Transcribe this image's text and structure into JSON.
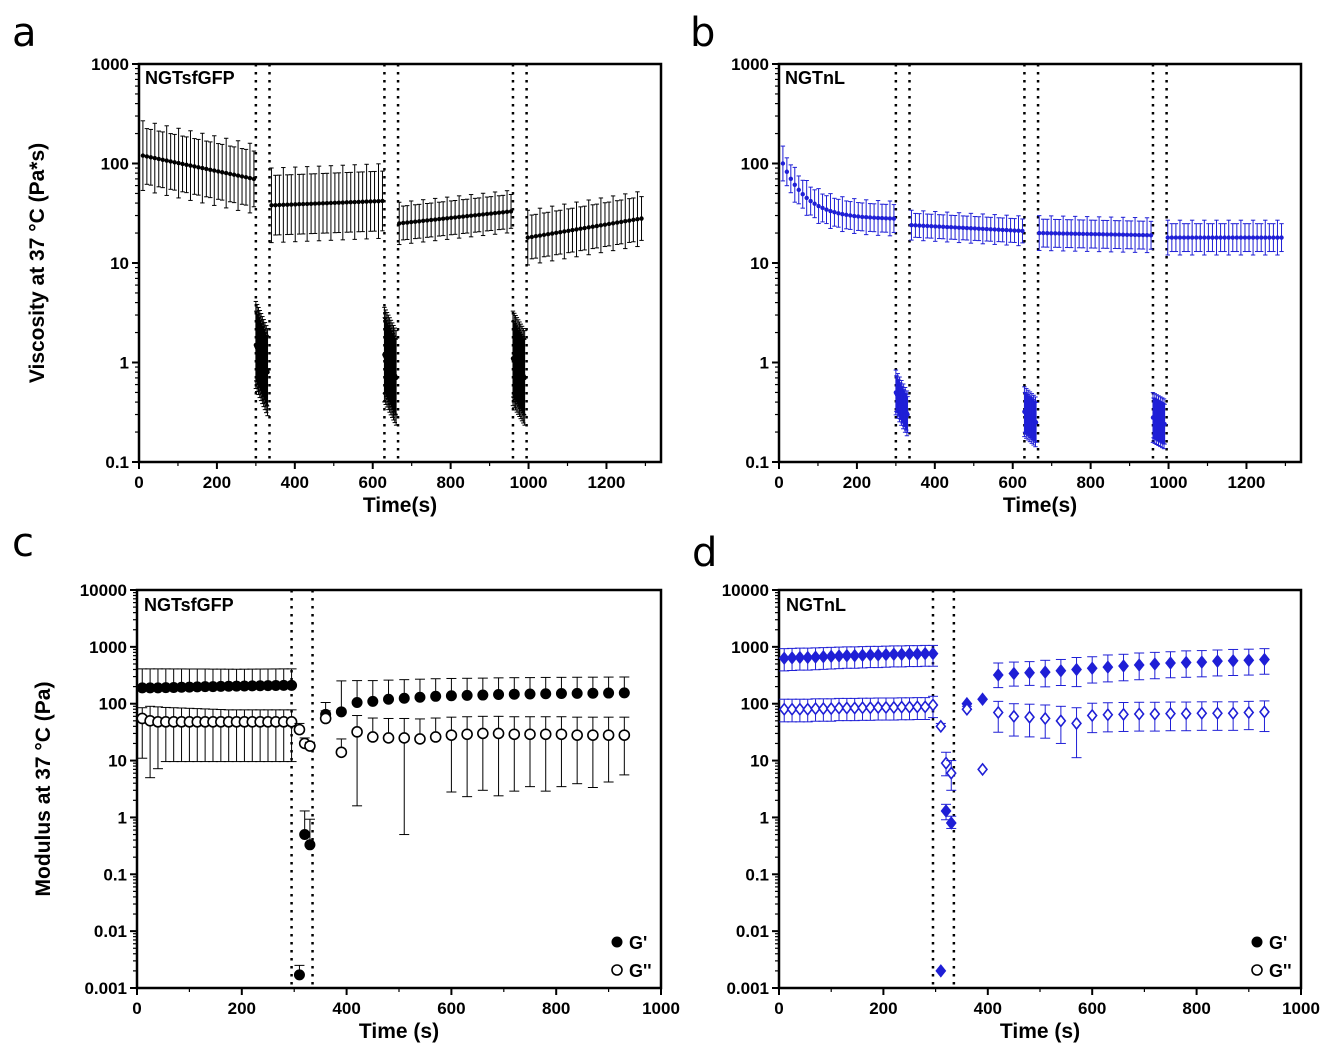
{
  "panel_letters": [
    "a",
    "b",
    "c",
    "d"
  ],
  "colors": {
    "black": "#000000",
    "blue": "#1f1fd6"
  },
  "chart_data": [
    {
      "id": "a",
      "type": "scatter",
      "scale_y": "log",
      "title": "NGTsfGFP",
      "xlabel": "Time(s)",
      "ylabel": "Viscosity at 37 °C (Pa*s)",
      "xlim": [
        0,
        1340
      ],
      "ylim": [
        0.1,
        1000
      ],
      "xticks": [
        0,
        200,
        400,
        600,
        800,
        1000,
        1200
      ],
      "yticks": [
        0.1,
        1,
        10,
        100,
        1000
      ],
      "ytick_labels": [
        "0.1",
        "1",
        "10",
        "100",
        "1000"
      ],
      "vlines": [
        300,
        335,
        630,
        665,
        960,
        995
      ],
      "color": "#000000",
      "marker": "dot",
      "segments": [
        {
          "x_start": 10,
          "x_end": 295,
          "n": 29,
          "y_start": 120,
          "y_end": 70,
          "err": 0.28
        },
        {
          "x_start": 300,
          "x_end": 330,
          "n": 28,
          "y_start": 1.5,
          "y_end": 0.8,
          "err": 0.35
        },
        {
          "x_start": 340,
          "x_end": 625,
          "n": 29,
          "y_start": 38,
          "y_end": 42,
          "err": 0.3
        },
        {
          "x_start": 630,
          "x_end": 660,
          "n": 28,
          "y_start": 1.2,
          "y_end": 0.7,
          "err": 0.38
        },
        {
          "x_start": 668,
          "x_end": 955,
          "n": 29,
          "y_start": 25,
          "y_end": 33,
          "err": 0.17
        },
        {
          "x_start": 960,
          "x_end": 990,
          "n": 28,
          "y_start": 1.1,
          "y_end": 0.7,
          "err": 0.38
        },
        {
          "x_start": 998,
          "x_end": 1290,
          "n": 29,
          "y_start": 18,
          "y_end": 28,
          "err": 0.22
        }
      ]
    },
    {
      "id": "b",
      "type": "scatter",
      "scale_y": "log",
      "title": "NGTnL",
      "xlabel": "Time(s)",
      "ylabel": "",
      "xlim": [
        0,
        1340
      ],
      "ylim": [
        0.1,
        1000
      ],
      "xticks": [
        0,
        200,
        400,
        600,
        800,
        1000,
        1200
      ],
      "yticks": [
        0.1,
        1,
        10,
        100,
        1000
      ],
      "ytick_labels": [
        "0.1",
        "1",
        "10",
        "100",
        "1000"
      ],
      "vlines": [
        300,
        335,
        630,
        665,
        960,
        995
      ],
      "color": "#1f1fd6",
      "marker": "dot",
      "segments": [
        {
          "x_start": 10,
          "x_end": 295,
          "n": 29,
          "y_start": 100,
          "y_end": 28,
          "err": 0.14,
          "decay": "exp"
        },
        {
          "x_start": 300,
          "x_end": 330,
          "n": 20,
          "y_start": 0.5,
          "y_end": 0.3,
          "err": 0.18
        },
        {
          "x_start": 340,
          "x_end": 625,
          "n": 29,
          "y_start": 24,
          "y_end": 21,
          "err": 0.12
        },
        {
          "x_start": 630,
          "x_end": 660,
          "n": 20,
          "y_start": 0.32,
          "y_end": 0.25,
          "err": 0.2
        },
        {
          "x_start": 668,
          "x_end": 955,
          "n": 29,
          "y_start": 20,
          "y_end": 19,
          "err": 0.14
        },
        {
          "x_start": 960,
          "x_end": 990,
          "n": 20,
          "y_start": 0.28,
          "y_end": 0.24,
          "err": 0.2
        },
        {
          "x_start": 998,
          "x_end": 1290,
          "n": 29,
          "y_start": 18,
          "y_end": 18,
          "err": 0.14
        }
      ]
    },
    {
      "id": "c",
      "type": "scatter",
      "scale_y": "log",
      "title": "NGTsfGFP",
      "xlabel": "Time (s)",
      "ylabel": "Modulus at 37 °C (Pa)",
      "xlim": [
        0,
        1000
      ],
      "ylim": [
        0.001,
        10000
      ],
      "xticks": [
        0,
        200,
        400,
        600,
        800,
        1000
      ],
      "yticks": [
        0.001,
        0.01,
        0.1,
        1,
        10,
        100,
        1000,
        10000
      ],
      "ytick_labels": [
        "0.001",
        "0.01",
        "0.1",
        "1",
        "10",
        "100",
        "1000",
        "10000"
      ],
      "vlines": [
        295,
        335
      ],
      "legend": {
        "position": "bottom-right",
        "entries": [
          "G'",
          "G''"
        ]
      },
      "series": [
        {
          "name": "G'",
          "color": "#000000",
          "marker": "circle-filled",
          "x": [
            10,
            25,
            40,
            55,
            70,
            85,
            100,
            115,
            130,
            145,
            160,
            175,
            190,
            205,
            220,
            235,
            250,
            265,
            280,
            295,
            310,
            320,
            330,
            360,
            390,
            420,
            450,
            480,
            510,
            540,
            570,
            600,
            630,
            660,
            690,
            720,
            750,
            780,
            810,
            840,
            870,
            900,
            930
          ],
          "y": [
            190,
            190,
            190,
            192,
            193,
            195,
            196,
            198,
            200,
            200,
            202,
            203,
            204,
            205,
            206,
            207,
            208,
            209,
            210,
            210,
            0.0017,
            0.5,
            0.33,
            65,
            72,
            105,
            110,
            120,
            125,
            130,
            135,
            138,
            140,
            142,
            145,
            147,
            148,
            150,
            151,
            152,
            153,
            154,
            155
          ],
          "err_up": [
            220,
            220,
            220,
            218,
            216,
            214,
            212,
            210,
            208,
            206,
            204,
            202,
            200,
            200,
            200,
            200,
            200,
            200,
            200,
            200,
            0.0008,
            0.8,
            0.6,
            40,
            180,
            150,
            145,
            140,
            140,
            140,
            140,
            140,
            140,
            140,
            140,
            140,
            140,
            140,
            140,
            140,
            140,
            140,
            140
          ]
        },
        {
          "name": "G''",
          "color": "#000000",
          "marker": "circle-open",
          "x": [
            10,
            25,
            40,
            55,
            70,
            85,
            100,
            115,
            130,
            145,
            160,
            175,
            190,
            205,
            220,
            235,
            250,
            265,
            280,
            295,
            310,
            320,
            330,
            360,
            390,
            420,
            450,
            480,
            510,
            540,
            570,
            600,
            630,
            660,
            690,
            720,
            750,
            780,
            810,
            840,
            870,
            900,
            930
          ],
          "y": [
            55,
            50,
            48,
            48,
            48,
            48,
            48,
            48,
            48,
            48,
            48,
            48,
            48,
            48,
            48,
            48,
            48,
            48,
            48,
            48,
            35,
            20,
            18,
            55,
            14,
            32,
            26,
            25,
            25,
            24,
            26,
            28,
            29,
            30,
            30,
            29,
            29,
            29,
            29,
            28,
            28,
            28,
            28
          ],
          "err_up": [
            30,
            40,
            40,
            38,
            37,
            36,
            35,
            34,
            33,
            32,
            31,
            30,
            30,
            30,
            30,
            30,
            30,
            30,
            30,
            30,
            10,
            5,
            3,
            20,
            10,
            30,
            30,
            30,
            30,
            30,
            30,
            30,
            30,
            30,
            30,
            30,
            30,
            30,
            30,
            30,
            30,
            30,
            30
          ],
          "err_down_ratio": [
            0.8,
            0.9,
            0.85,
            0.8,
            0.8,
            0.8,
            0.8,
            0.8,
            0.8,
            0.8,
            0.8,
            0.8,
            0.8,
            0.8,
            0.8,
            0.8,
            0.8,
            0.8,
            0.8,
            0.8,
            0,
            0,
            0,
            0,
            0,
            0.95,
            0,
            0,
            0.98,
            0,
            0,
            0.9,
            0.92,
            0.9,
            0.92,
            0.9,
            0.88,
            0.9,
            0.88,
            0.86,
            0.88,
            0.85,
            0.8
          ]
        }
      ]
    },
    {
      "id": "d",
      "type": "scatter",
      "scale_y": "log",
      "title": "NGTnL",
      "xlabel": "Time (s)",
      "ylabel": "",
      "xlim": [
        0,
        1000
      ],
      "ylim": [
        0.001,
        10000
      ],
      "xticks": [
        0,
        200,
        400,
        600,
        800,
        1000
      ],
      "yticks": [
        0.001,
        0.01,
        0.1,
        1,
        10,
        100,
        1000,
        10000
      ],
      "ytick_labels": [
        "0.001",
        "0.01",
        "0.1",
        "1",
        "10",
        "100",
        "1000",
        "10000"
      ],
      "vlines": [
        295,
        335
      ],
      "legend": {
        "position": "bottom-right",
        "entries": [
          "G'",
          "G''"
        ]
      },
      "series": [
        {
          "name": "G'",
          "color": "#1f1fd6",
          "marker": "diamond-filled",
          "x": [
            10,
            25,
            40,
            55,
            70,
            85,
            100,
            115,
            130,
            145,
            160,
            175,
            190,
            205,
            220,
            235,
            250,
            265,
            280,
            295,
            310,
            320,
            330,
            360,
            390,
            420,
            450,
            480,
            510,
            540,
            570,
            600,
            630,
            660,
            690,
            720,
            750,
            780,
            810,
            840,
            870,
            900,
            930
          ],
          "y": [
            630,
            640,
            650,
            650,
            660,
            670,
            680,
            690,
            700,
            700,
            710,
            720,
            720,
            730,
            740,
            740,
            750,
            750,
            760,
            760,
            0.002,
            1.3,
            0.8,
            100,
            120,
            320,
            340,
            350,
            360,
            380,
            400,
            420,
            440,
            460,
            480,
            500,
            520,
            530,
            540,
            560,
            570,
            580,
            600
          ],
          "err_up": [
            300,
            300,
            300,
            300,
            300,
            300,
            300,
            300,
            300,
            300,
            300,
            300,
            300,
            300,
            300,
            300,
            300,
            300,
            300,
            300,
            0,
            0.4,
            0.25,
            0,
            0,
            200,
            200,
            200,
            220,
            220,
            250,
            250,
            280,
            280,
            300,
            300,
            300,
            320,
            320,
            320,
            330,
            330,
            330
          ],
          "err_down_ratio": [
            0.4,
            0.4,
            0.4,
            0.4,
            0.4,
            0.4,
            0.4,
            0.4,
            0.4,
            0.4,
            0.4,
            0.4,
            0.4,
            0.4,
            0.4,
            0.4,
            0.4,
            0.4,
            0.4,
            0.4,
            0,
            0.3,
            0.2,
            0,
            0,
            0.4,
            0.4,
            0.4,
            0.45,
            0.45,
            0.5,
            0.45,
            0.45,
            0.45,
            0.45,
            0.45,
            0.45,
            0.45,
            0.45,
            0.45,
            0.45,
            0.45,
            0.45
          ]
        },
        {
          "name": "G''",
          "color": "#1f1fd6",
          "marker": "diamond-open",
          "x": [
            10,
            25,
            40,
            55,
            70,
            85,
            100,
            115,
            130,
            145,
            160,
            175,
            190,
            205,
            220,
            235,
            250,
            265,
            280,
            295,
            310,
            320,
            330,
            360,
            390,
            420,
            450,
            480,
            510,
            540,
            570,
            600,
            630,
            660,
            690,
            720,
            750,
            780,
            810,
            840,
            870,
            900,
            930
          ],
          "y": [
            80,
            80,
            80,
            80,
            82,
            82,
            82,
            84,
            84,
            84,
            85,
            85,
            86,
            86,
            86,
            87,
            87,
            88,
            88,
            95,
            40,
            9,
            6,
            80,
            7,
            70,
            60,
            58,
            55,
            50,
            45,
            62,
            64,
            65,
            66,
            66,
            67,
            67,
            68,
            68,
            68,
            70,
            72
          ],
          "err_up": [
            40,
            40,
            40,
            40,
            40,
            40,
            40,
            40,
            40,
            40,
            40,
            40,
            40,
            40,
            40,
            40,
            40,
            40,
            40,
            40,
            5,
            5,
            4,
            10,
            0,
            40,
            40,
            40,
            40,
            40,
            40,
            40,
            40,
            40,
            40,
            40,
            40,
            40,
            40,
            40,
            40,
            40,
            40
          ],
          "err_down_ratio": [
            0.4,
            0.4,
            0.4,
            0.4,
            0.4,
            0.4,
            0.4,
            0.4,
            0.4,
            0.4,
            0.4,
            0.4,
            0.4,
            0.4,
            0.4,
            0.4,
            0.4,
            0.4,
            0.4,
            0.4,
            0,
            0.4,
            0.5,
            0,
            0,
            0.55,
            0.55,
            0.55,
            0.55,
            0.6,
            0.75,
            0.5,
            0.5,
            0.5,
            0.5,
            0.5,
            0.5,
            0.5,
            0.5,
            0.5,
            0.5,
            0.5,
            0.55
          ]
        }
      ]
    }
  ]
}
